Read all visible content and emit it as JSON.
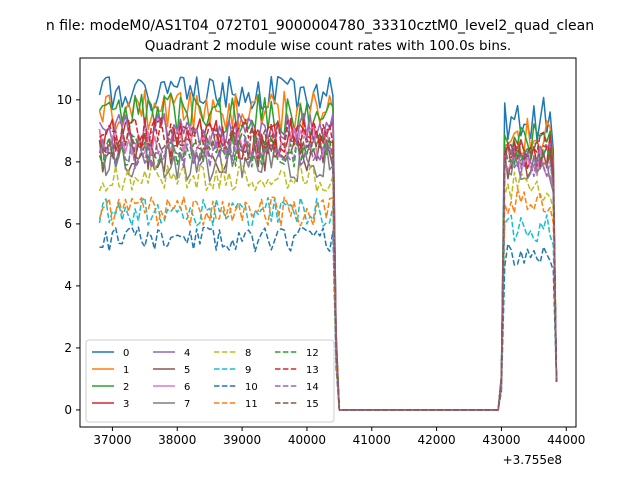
{
  "figure": {
    "suptitle": "n file: modeM0/AS1T04_072T01_9000004780_33310cztM0_level2_quad_clean"
  },
  "chart_data": {
    "type": "line",
    "title": "Quadrant 2 module wise count rates with 100.0s bins.",
    "xlabel": "",
    "ylabel": "",
    "x_offset_label": "+3.755e8",
    "x_unit_note": "x values below are raw axis values before the printed +3.755e8 offset",
    "xlim": [
      36500,
      44150
    ],
    "ylim": [
      -0.55,
      11.35
    ],
    "xticks": [
      37000,
      38000,
      39000,
      40000,
      41000,
      42000,
      43000,
      44000
    ],
    "xtick_labels": [
      "37000",
      "38000",
      "39000",
      "40000",
      "41000",
      "42000",
      "43000",
      "44000"
    ],
    "yticks": [
      0,
      2,
      4,
      6,
      8,
      10
    ],
    "ytick_labels": [
      "0",
      "2",
      "4",
      "6",
      "8",
      "10"
    ],
    "grid": false,
    "legend": {
      "placement": "lower-left",
      "columns": 4
    },
    "segments": {
      "x_start_1": 36800,
      "x_end_1": 40400,
      "drop_x": [
        40450,
        40500
      ],
      "zero_range": [
        40500,
        42950
      ],
      "rise_x": [
        43000
      ],
      "x_start_2": 43050,
      "x_end_2": 43750,
      "tail_x": [
        43800,
        43850
      ]
    },
    "series": [
      {
        "name": "0",
        "color": "#1f77b4",
        "dash": "solid",
        "mean1": 10.2,
        "amp1": 0.35,
        "mean2": 9.3,
        "amp2": 0.5,
        "seed": 1
      },
      {
        "name": "1",
        "color": "#ff7f0e",
        "dash": "solid",
        "mean1": 9.6,
        "amp1": 0.45,
        "mean2": 8.8,
        "amp2": 0.4,
        "seed": 2
      },
      {
        "name": "2",
        "color": "#2ca02c",
        "dash": "solid",
        "mean1": 9.5,
        "amp1": 0.45,
        "mean2": 8.6,
        "amp2": 0.4,
        "seed": 3
      },
      {
        "name": "3",
        "color": "#d62728",
        "dash": "solid",
        "mean1": 8.8,
        "amp1": 0.45,
        "mean2": 8.4,
        "amp2": 0.4,
        "seed": 4
      },
      {
        "name": "4",
        "color": "#9467bd",
        "dash": "solid",
        "mean1": 9.0,
        "amp1": 0.35,
        "mean2": 8.2,
        "amp2": 0.3,
        "seed": 5
      },
      {
        "name": "5",
        "color": "#8c564b",
        "dash": "solid",
        "mean1": 8.3,
        "amp1": 0.4,
        "mean2": 7.9,
        "amp2": 0.3,
        "seed": 6
      },
      {
        "name": "6",
        "color": "#e377c2",
        "dash": "solid",
        "mean1": 8.6,
        "amp1": 0.35,
        "mean2": 8.0,
        "amp2": 0.3,
        "seed": 7
      },
      {
        "name": "7",
        "color": "#7f7f7f",
        "dash": "solid",
        "mean1": 8.0,
        "amp1": 0.4,
        "mean2": 7.8,
        "amp2": 0.3,
        "seed": 8
      },
      {
        "name": "8",
        "color": "#bcbd22",
        "dash": "dashed",
        "mean1": 7.5,
        "amp1": 0.3,
        "mean2": 7.2,
        "amp2": 0.3,
        "seed": 9
      },
      {
        "name": "9",
        "color": "#17becf",
        "dash": "dashed",
        "mean1": 6.4,
        "amp1": 0.3,
        "mean2": 5.9,
        "amp2": 0.3,
        "seed": 10
      },
      {
        "name": "10",
        "color": "#1f77b4",
        "dash": "dashed",
        "mean1": 5.5,
        "amp1": 0.25,
        "mean2": 5.0,
        "amp2": 0.25,
        "seed": 11
      },
      {
        "name": "11",
        "color": "#ff7f0e",
        "dash": "dashed",
        "mean1": 6.4,
        "amp1": 0.3,
        "mean2": 6.7,
        "amp2": 0.3,
        "seed": 12
      },
      {
        "name": "12",
        "color": "#2ca02c",
        "dash": "dashed",
        "mean1": 8.4,
        "amp1": 0.35,
        "mean2": 8.2,
        "amp2": 0.3,
        "seed": 13
      },
      {
        "name": "13",
        "color": "#d62728",
        "dash": "dashed",
        "mean1": 8.9,
        "amp1": 0.35,
        "mean2": 8.5,
        "amp2": 0.3,
        "seed": 14
      },
      {
        "name": "14",
        "color": "#9467bd",
        "dash": "dashed",
        "mean1": 8.3,
        "amp1": 0.35,
        "mean2": 8.0,
        "amp2": 0.3,
        "seed": 15
      },
      {
        "name": "15",
        "color": "#8c564b",
        "dash": "dashed",
        "mean1": 8.6,
        "amp1": 0.35,
        "mean2": 8.3,
        "amp2": 0.3,
        "seed": 16
      }
    ]
  }
}
